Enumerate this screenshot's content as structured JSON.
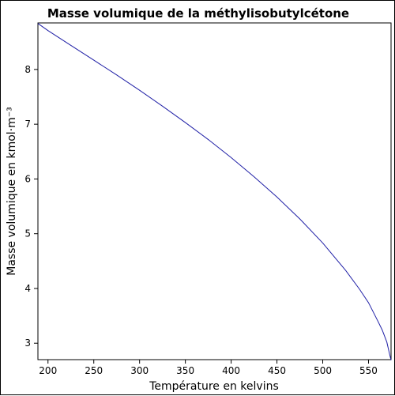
{
  "chart_data": {
    "type": "line",
    "title": "Masse volumique de la méthylisobutylcétone",
    "xlabel": "Température en kelvins",
    "ylabel": "Masse volumique en kmol·m⁻³",
    "xlim": [
      189,
      574.6
    ],
    "ylim": [
      2.7,
      8.85
    ],
    "xticks": [
      200,
      250,
      300,
      350,
      400,
      450,
      500,
      550
    ],
    "yticks": [
      3,
      4,
      5,
      6,
      7,
      8
    ],
    "grid": false,
    "line_color": "#1f1fa6",
    "series": [
      {
        "x": [
          189,
          200,
          225,
          250,
          275,
          300,
          325,
          350,
          375,
          400,
          425,
          450,
          475,
          500,
          525,
          540,
          550,
          560,
          565,
          570,
          573,
          574.6
        ],
        "y": [
          8.84,
          8.71,
          8.44,
          8.17,
          7.9,
          7.62,
          7.33,
          7.03,
          6.72,
          6.39,
          6.04,
          5.67,
          5.27,
          4.83,
          4.33,
          3.99,
          3.74,
          3.41,
          3.24,
          3.02,
          2.8,
          2.69
        ]
      }
    ]
  }
}
